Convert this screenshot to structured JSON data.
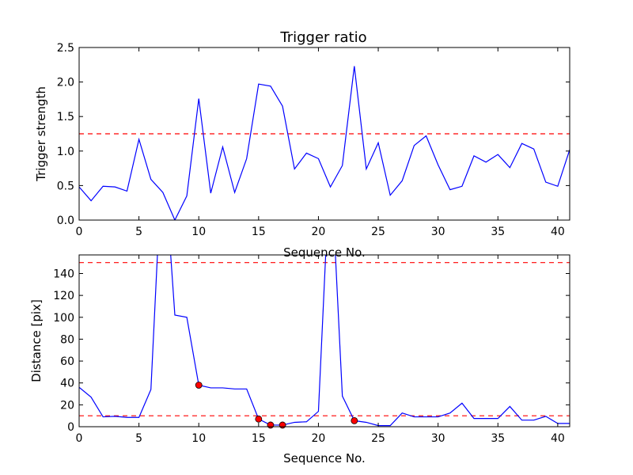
{
  "figure": {
    "title": "Trigger ratio"
  },
  "chart_data": [
    {
      "type": "line",
      "title": "Trigger ratio",
      "xlabel": "Sequence No.",
      "ylabel": "Trigger strength",
      "xlim": [
        0,
        41
      ],
      "ylim": [
        0,
        2.5
      ],
      "xticks": [
        0,
        5,
        10,
        15,
        20,
        25,
        30,
        35,
        40
      ],
      "xtick_labels": [
        "0",
        "5",
        "10",
        "15",
        "20",
        "25",
        "30",
        "35",
        "40"
      ],
      "yticks": [
        0,
        0.5,
        1.0,
        1.5,
        2.0,
        2.5
      ],
      "ytick_labels": [
        "0.0",
        "0.5",
        "1.0",
        "1.5",
        "2.0",
        "2.5"
      ],
      "grid": false,
      "line_color": "#0000ff",
      "threshold_color": "#ff0000",
      "thresholds": [
        1.25
      ],
      "series": [
        {
          "x": [
            0,
            1,
            2,
            3,
            4,
            5,
            6,
            7,
            8,
            9,
            10,
            11,
            12,
            13,
            14,
            15,
            16,
            17,
            18,
            19,
            20,
            21,
            22,
            23,
            24,
            25,
            26,
            27,
            28,
            29,
            30,
            31,
            32,
            33,
            34,
            35,
            36,
            37,
            38,
            39,
            40,
            41
          ],
          "values": [
            0.48,
            0.28,
            0.49,
            0.48,
            0.42,
            1.17,
            0.59,
            0.4,
            0.0,
            0.35,
            1.76,
            0.39,
            1.06,
            0.4,
            0.89,
            1.97,
            1.94,
            1.65,
            0.74,
            0.97,
            0.89,
            0.48,
            0.79,
            2.23,
            0.74,
            1.12,
            0.36,
            0.57,
            1.08,
            1.22,
            0.8,
            0.44,
            0.49,
            0.93,
            0.84,
            0.95,
            0.76,
            1.11,
            1.03,
            0.55,
            0.49,
            1.02
          ]
        }
      ]
    },
    {
      "type": "line",
      "title": "",
      "xlabel": "Sequence No.",
      "ylabel": "Distance [pix]",
      "xlim": [
        0,
        41
      ],
      "ylim": [
        0,
        157
      ],
      "xticks": [
        0,
        5,
        10,
        15,
        20,
        25,
        30,
        35,
        40
      ],
      "xtick_labels": [
        "0",
        "5",
        "10",
        "15",
        "20",
        "25",
        "30",
        "35",
        "40"
      ],
      "yticks": [
        0,
        20,
        40,
        60,
        80,
        100,
        120,
        140
      ],
      "ytick_labels": [
        "0",
        "20",
        "40",
        "60",
        "80",
        "100",
        "120",
        "140"
      ],
      "grid": false,
      "line_color": "#0000ff",
      "threshold_color": "#ff0000",
      "marker_color": "#ff0000",
      "thresholds": [
        150,
        10
      ],
      "series": [
        {
          "x": [
            0,
            1,
            2,
            3,
            4,
            5,
            6,
            7,
            8,
            9,
            10,
            11,
            12,
            13,
            14,
            15,
            16,
            17,
            18,
            19,
            20,
            21,
            22,
            23,
            24,
            25,
            26,
            27,
            28,
            29,
            30,
            31,
            32,
            33,
            34,
            35,
            36,
            37,
            38,
            39,
            40,
            41
          ],
          "values": [
            36,
            27,
            9,
            9.5,
            8.5,
            8.5,
            34,
            260,
            102,
            100,
            38,
            35.5,
            35.5,
            34.5,
            34.5,
            7,
            1.5,
            1.5,
            4,
            4.5,
            14,
            250,
            28,
            5.5,
            4,
            1,
            1,
            12.5,
            9,
            9,
            9,
            12.5,
            21.5,
            7.5,
            7.5,
            7.5,
            18.5,
            6,
            6,
            9.5,
            3,
            3
          ]
        }
      ],
      "markers": [
        {
          "x": 10,
          "y": 38
        },
        {
          "x": 15,
          "y": 7
        },
        {
          "x": 16,
          "y": 1.5
        },
        {
          "x": 17,
          "y": 1.5
        },
        {
          "x": 23,
          "y": 5.5
        }
      ]
    }
  ]
}
